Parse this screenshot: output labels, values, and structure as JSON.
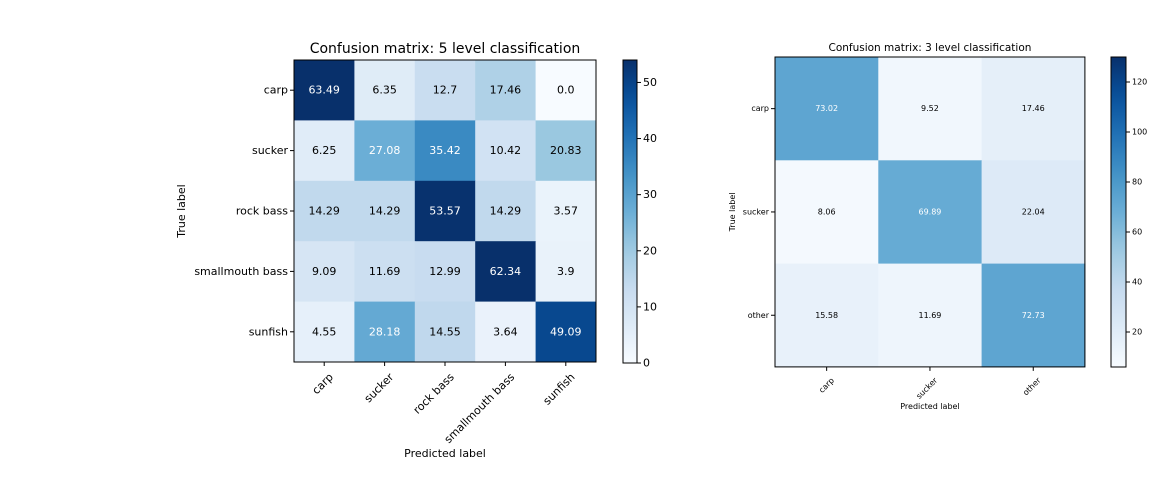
{
  "chart_data": [
    {
      "type": "heatmap",
      "title": "Confusion matrix: 5 level classification",
      "xlabel": "Predicted label",
      "ylabel": "True label",
      "rows": [
        "carp",
        "sucker",
        "rock bass",
        "smallmouth bass",
        "sunfish"
      ],
      "cols": [
        "carp",
        "sucker",
        "rock bass",
        "smallmouth bass",
        "sunfish"
      ],
      "values": [
        [
          "63.49",
          "6.35",
          "12.7",
          "17.46",
          "0.0"
        ],
        [
          "6.25",
          "27.08",
          "35.42",
          "10.42",
          "20.83"
        ],
        [
          "14.29",
          "14.29",
          "53.57",
          "14.29",
          "3.57"
        ],
        [
          "9.09",
          "11.69",
          "12.99",
          "62.34",
          "3.9"
        ],
        [
          "4.55",
          "28.18",
          "14.55",
          "3.64",
          "49.09"
        ]
      ],
      "colormap": "Blues",
      "colorbar": {
        "range": [
          0,
          54
        ],
        "ticks": [
          "0",
          "10",
          "20",
          "30",
          "40",
          "50"
        ]
      }
    },
    {
      "type": "heatmap",
      "title": "Confusion matrix: 3 level classification",
      "xlabel": "Predicted label",
      "ylabel": "True label",
      "rows": [
        "carp",
        "sucker",
        "other"
      ],
      "cols": [
        "carp",
        "sucker",
        "other"
      ],
      "values": [
        [
          "73.02",
          "9.52",
          "17.46"
        ],
        [
          "8.06",
          "69.89",
          "22.04"
        ],
        [
          "15.58",
          "11.69",
          "72.73"
        ]
      ],
      "colormap": "Blues",
      "colorbar": {
        "range": [
          6,
          130
        ],
        "ticks": [
          "20",
          "40",
          "60",
          "80",
          "100",
          "120"
        ]
      }
    }
  ]
}
